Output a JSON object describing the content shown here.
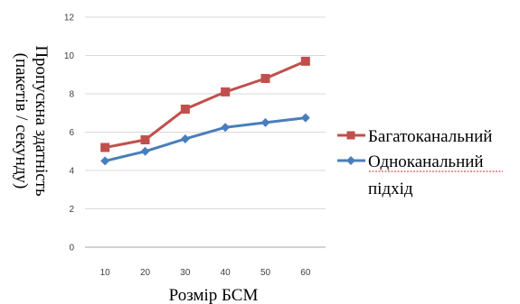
{
  "chart_data": {
    "type": "line",
    "x": [
      10,
      20,
      30,
      40,
      50,
      60
    ],
    "series": [
      {
        "name": "Багатоканальний",
        "values": [
          5.2,
          5.6,
          7.2,
          8.1,
          8.8,
          9.7
        ],
        "color": "#c0504d",
        "marker": "square"
      },
      {
        "name": "Одноканальний підхід",
        "name_lines": [
          "Одноканальний",
          "підхід"
        ],
        "values": [
          4.5,
          5.0,
          5.65,
          6.25,
          6.5,
          6.75
        ],
        "color": "#4a7ebb",
        "marker": "diamond"
      }
    ],
    "yticks": [
      0,
      2,
      4,
      6,
      8,
      10,
      12
    ],
    "ylim": [
      0,
      12
    ],
    "xlabel": "Розмір БСМ",
    "ylabel_lines": [
      "Пропускна здатність",
      "(пакетів / секунду)"
    ],
    "grid": "horizontal",
    "legend_position": "right"
  }
}
